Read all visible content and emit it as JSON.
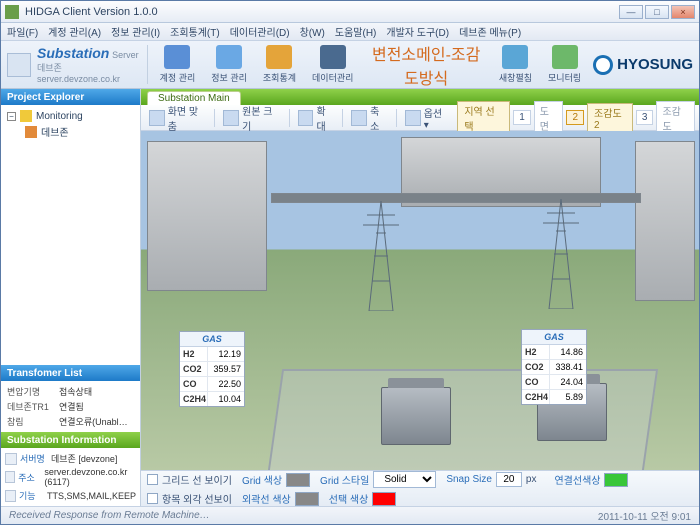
{
  "window": {
    "title": "HIDGA Client Version 1.0.0"
  },
  "menubar": [
    "파일(F)",
    "계정 관리(A)",
    "정보 관리(I)",
    "조회통계(T)",
    "데이터관리(D)",
    "창(W)",
    "도움말(H)",
    "개발자 도구(D)",
    "데브존 메뉴(P)"
  ],
  "brand": {
    "name": "Substation",
    "sub": "Server",
    "server1": "데브존",
    "server2": "server.devzone.co.kr"
  },
  "ribbon_buttons": [
    {
      "label": "계정 관리",
      "color": "#5a8fd6"
    },
    {
      "label": "정보 관리",
      "color": "#6aa8e4"
    },
    {
      "label": "조회통계",
      "color": "#e4a43a"
    },
    {
      "label": "데이터관리",
      "color": "#4a6a8f"
    }
  ],
  "ribbon_title": "변전소메인-조감도방식",
  "ribbon_right": [
    {
      "label": "새창펼침",
      "color": "#5aa6d6"
    },
    {
      "label": "모니터링",
      "color": "#6db86a"
    }
  ],
  "brand_logo": "HYOSUNG",
  "panels": {
    "explorer": "Project Explorer",
    "tlist": "Transfomer List",
    "sinfo": "Substation Information"
  },
  "tree": {
    "root": "Monitoring",
    "child": "데브존"
  },
  "tlist": {
    "h1": "변압기명",
    "h2": "접속상태",
    "r1k": "데브존TR1",
    "r1v": "연결됨",
    "r2k": "참림",
    "r2v": "연결오류(Unabl…"
  },
  "sinfo": [
    {
      "k": "서버명",
      "v": "데브존 [devzone]"
    },
    {
      "k": "주소",
      "v": "server.devzone.co.kr (6117)"
    },
    {
      "k": "기능",
      "v": "TTS,SMS,MAIL,KEEP"
    }
  ],
  "tab": "Substation Main",
  "toolbar": {
    "btns": [
      "화면 맞춤",
      "원본 크기",
      "확대",
      "축소",
      "옵션 ▾"
    ],
    "region": "지역 선택",
    "views": [
      {
        "n": "1",
        "l": "도면"
      },
      {
        "n": "2",
        "l": "조감도2",
        "active": true
      },
      {
        "n": "3",
        "l": "조감도"
      }
    ]
  },
  "gas1": {
    "title": "GAS",
    "rows": [
      [
        "H2",
        "12.19"
      ],
      [
        "CO2",
        "359.57"
      ],
      [
        "CO",
        "22.50"
      ],
      [
        "C2H4",
        "10.04"
      ]
    ]
  },
  "gas2": {
    "title": "GAS",
    "rows": [
      [
        "H2",
        "14.86"
      ],
      [
        "CO2",
        "338.41"
      ],
      [
        "CO",
        "24.04"
      ],
      [
        "C2H4",
        "5.89"
      ]
    ]
  },
  "bottom": {
    "grid_show": "그리드 선 보이기",
    "grid_color": "Grid 색상",
    "grid_style": "Grid 스타일",
    "grid_style_val": "Solid",
    "item_show": "항목 외각 선보이",
    "outer_color": "외곽선 색상",
    "sel_color": "선택 색상",
    "snap": "Snap Size",
    "snap_val": "20",
    "px": "px",
    "conn": "연결선색상",
    "sw_grid": "#888888",
    "sw_outer": "#888888",
    "sw_sel": "#ff0000",
    "sw_conn": "#39c639"
  },
  "status": {
    "msg": "Received Response from Remote Machine…",
    "dt": "2011-10-11 오전 9:01"
  }
}
